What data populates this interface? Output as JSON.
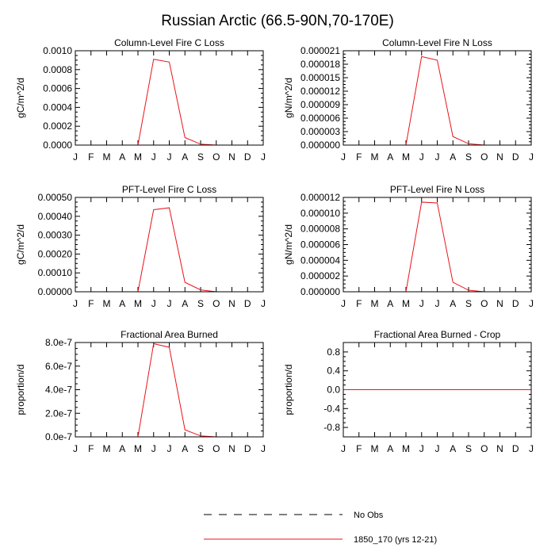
{
  "title": "Russian Arctic (66.5-90N,70-170E)",
  "colors": {
    "model": "#e8141b",
    "obs": "#000000",
    "axis": "#000000"
  },
  "chart_data": [
    {
      "type": "line",
      "title": "Column-Level Fire C Loss",
      "ylabel": "gC/m^2/d",
      "xlabel": "",
      "categories": [
        "J",
        "F",
        "M",
        "A",
        "M",
        "J",
        "J",
        "A",
        "S",
        "O",
        "N",
        "D",
        "J"
      ],
      "ylim": [
        0,
        0.001
      ],
      "yticks": [
        "0.0000",
        "0.0002",
        "0.0004",
        "0.0006",
        "0.0008",
        "0.0010"
      ],
      "series": [
        {
          "name": "1850_170 (yrs 12-21)",
          "values": [
            0,
            0,
            0,
            0,
            0,
            0.00091,
            0.00088,
            8e-05,
            1e-05,
            0,
            0,
            0,
            0
          ]
        }
      ]
    },
    {
      "type": "line",
      "title": "Column-Level Fire N Loss",
      "ylabel": "gN/m^2/d",
      "xlabel": "",
      "categories": [
        "J",
        "F",
        "M",
        "A",
        "M",
        "J",
        "J",
        "A",
        "S",
        "O",
        "N",
        "D",
        "J"
      ],
      "ylim": [
        0,
        2.1e-05
      ],
      "yticks": [
        "0.000000",
        "0.000003",
        "0.000006",
        "0.000009",
        "0.000012",
        "0.000015",
        "0.000018",
        "0.000021"
      ],
      "series": [
        {
          "name": "1850_170 (yrs 12-21)",
          "values": [
            0,
            0,
            0,
            0,
            0,
            1.97e-05,
            1.89e-05,
            1.9e-06,
            3e-07,
            0,
            0,
            0,
            0
          ]
        }
      ]
    },
    {
      "type": "line",
      "title": "PFT-Level Fire C Loss",
      "ylabel": "gC/m^2/d",
      "xlabel": "",
      "categories": [
        "J",
        "F",
        "M",
        "A",
        "M",
        "J",
        "J",
        "A",
        "S",
        "O",
        "N",
        "D",
        "J"
      ],
      "ylim": [
        0,
        0.0005
      ],
      "yticks": [
        "0.00000",
        "0.00010",
        "0.00020",
        "0.00030",
        "0.00040",
        "0.00050"
      ],
      "series": [
        {
          "name": "1850_170 (yrs 12-21)",
          "values": [
            0,
            0,
            0,
            0,
            0,
            0.000435,
            0.000445,
            5e-05,
            1e-05,
            0,
            0,
            0,
            0
          ]
        }
      ]
    },
    {
      "type": "line",
      "title": "PFT-Level Fire N Loss",
      "ylabel": "gN/m^2/d",
      "xlabel": "",
      "categories": [
        "J",
        "F",
        "M",
        "A",
        "M",
        "J",
        "J",
        "A",
        "S",
        "O",
        "N",
        "D",
        "J"
      ],
      "ylim": [
        0,
        1.2e-05
      ],
      "yticks": [
        "0.000000",
        "0.000002",
        "0.000004",
        "0.000006",
        "0.000008",
        "0.000010",
        "0.000012"
      ],
      "series": [
        {
          "name": "1850_170 (yrs 12-21)",
          "values": [
            0,
            0,
            0,
            0,
            0,
            1.14e-05,
            1.13e-05,
            1.2e-06,
            2e-07,
            0,
            0,
            0,
            0
          ]
        }
      ]
    },
    {
      "type": "line",
      "title": "Fractional Area Burned",
      "ylabel": "proportion/d",
      "xlabel": "",
      "categories": [
        "J",
        "F",
        "M",
        "A",
        "M",
        "J",
        "J",
        "A",
        "S",
        "O",
        "N",
        "D",
        "J"
      ],
      "ylim": [
        0,
        8e-07
      ],
      "yticks": [
        "0.0e-7",
        "2.0e-7",
        "4.0e-7",
        "6.0e-7",
        "8.0e-7"
      ],
      "series": [
        {
          "name": "1850_170 (yrs 12-21)",
          "values": [
            0,
            0,
            0,
            0,
            0,
            7.9e-07,
            7.6e-07,
            6e-08,
            8e-09,
            0,
            0,
            0,
            0
          ]
        }
      ]
    },
    {
      "type": "line",
      "title": "Fractional Area Burned - Crop",
      "ylabel": "proportion/d",
      "xlabel": "",
      "categories": [
        "J",
        "F",
        "M",
        "A",
        "M",
        "J",
        "J",
        "A",
        "S",
        "O",
        "N",
        "D",
        "J"
      ],
      "ylim": [
        -1,
        1
      ],
      "yticks": [
        "-0.8",
        "-0.4",
        "0.0",
        "0.4",
        "0.8"
      ],
      "ytick_values": [
        -0.8,
        -0.4,
        0,
        0.4,
        0.8
      ],
      "series": [
        {
          "name": "1850_170 (yrs 12-21)",
          "values": [
            0,
            0,
            0,
            0,
            0,
            0,
            0,
            0,
            0,
            0,
            0,
            0,
            0
          ]
        }
      ]
    }
  ],
  "legend": {
    "position": "bottom-center",
    "entries": [
      {
        "label": "No Obs",
        "style": "dashed",
        "color": "#000000"
      },
      {
        "label": "1850_170 (yrs 12-21)",
        "style": "solid",
        "color": "#e8141b"
      }
    ]
  }
}
